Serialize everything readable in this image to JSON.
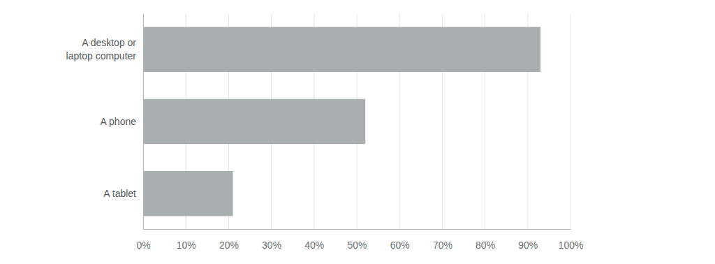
{
  "chart_data": {
    "type": "bar",
    "orientation": "horizontal",
    "categories": [
      "A desktop or laptop computer",
      "A phone",
      "A tablet"
    ],
    "values": [
      93,
      52,
      21
    ],
    "color": "#a9aeae",
    "xlim": [
      0,
      100
    ],
    "xticks": [
      {
        "value": 0,
        "label": "0%"
      },
      {
        "value": 10,
        "label": "10%"
      },
      {
        "value": 20,
        "label": "20%"
      },
      {
        "value": 30,
        "label": "30%"
      },
      {
        "value": 40,
        "label": "40%"
      },
      {
        "value": 50,
        "label": "50%"
      },
      {
        "value": 60,
        "label": "60%"
      },
      {
        "value": 70,
        "label": "70%"
      },
      {
        "value": 80,
        "label": "80%"
      },
      {
        "value": 90,
        "label": "90%"
      },
      {
        "value": 100,
        "label": "100%"
      }
    ],
    "grid": true
  }
}
